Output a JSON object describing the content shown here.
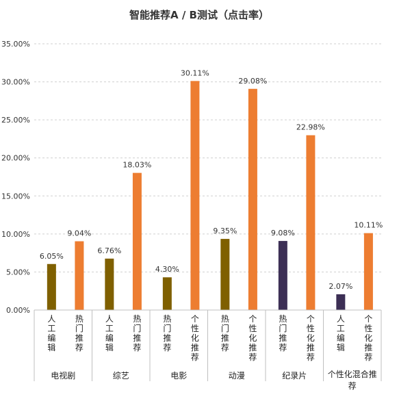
{
  "chart_data": {
    "type": "bar",
    "title": "智能推荐A / B测试（点击率）",
    "ylim": [
      0,
      35
    ],
    "y_ticks": [
      "0.00%",
      "5.00%",
      "10.00%",
      "15.00%",
      "20.00%",
      "25.00%",
      "30.00%",
      "35.00%"
    ],
    "grid": "horizontal dashed",
    "legend": "none",
    "groups": [
      {
        "name": "电视剧",
        "bars": [
          {
            "label": "人工编辑",
            "value": 6.05,
            "display": "6.05%",
            "color": "#7f6000"
          },
          {
            "label": "热门推荐",
            "value": 9.04,
            "display": "9.04%",
            "color": "#ed7d31"
          }
        ]
      },
      {
        "name": "综艺",
        "bars": [
          {
            "label": "人工编辑",
            "value": 6.76,
            "display": "6.76%",
            "color": "#7f6000"
          },
          {
            "label": "热门推荐",
            "value": 18.03,
            "display": "18.03%",
            "color": "#ed7d31"
          }
        ]
      },
      {
        "name": "电影",
        "bars": [
          {
            "label": "热门推荐",
            "value": 4.3,
            "display": "4.30%",
            "color": "#7f6000"
          },
          {
            "label": "个性化推荐",
            "value": 30.11,
            "display": "30.11%",
            "color": "#ed7d31"
          }
        ]
      },
      {
        "name": "动漫",
        "bars": [
          {
            "label": "热门推荐",
            "value": 9.35,
            "display": "9.35%",
            "color": "#7f6000"
          },
          {
            "label": "个性化推荐",
            "value": 29.08,
            "display": "29.08%",
            "color": "#ed7d31"
          }
        ]
      },
      {
        "name": "纪录片",
        "bars": [
          {
            "label": "热门推荐",
            "value": 9.08,
            "display": "9.08%",
            "color": "#3c2f55"
          },
          {
            "label": "个性化推荐",
            "value": 22.98,
            "display": "22.98%",
            "color": "#ed7d31"
          }
        ]
      },
      {
        "name": "个性化混合推荐",
        "bars": [
          {
            "label": "人工编辑",
            "value": 2.07,
            "display": "2.07%",
            "color": "#3c2f55"
          },
          {
            "label": "个性化推荐",
            "value": 10.11,
            "display": "10.11%",
            "color": "#ed7d31"
          }
        ]
      }
    ]
  }
}
